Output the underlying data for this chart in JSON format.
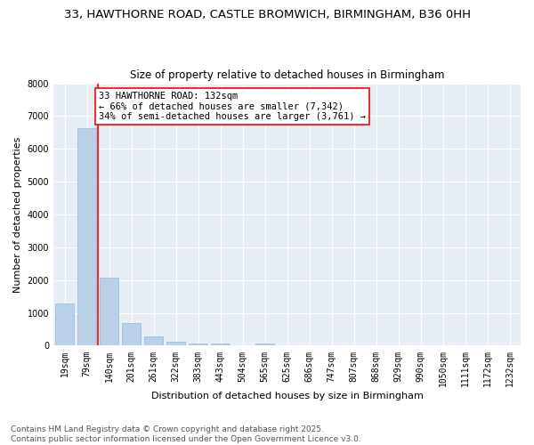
{
  "title1": "33, HAWTHORNE ROAD, CASTLE BROMWICH, BIRMINGHAM, B36 0HH",
  "title2": "Size of property relative to detached houses in Birmingham",
  "xlabel": "Distribution of detached houses by size in Birmingham",
  "ylabel": "Number of detached properties",
  "categories": [
    "19sqm",
    "79sqm",
    "140sqm",
    "201sqm",
    "261sqm",
    "322sqm",
    "383sqm",
    "443sqm",
    "504sqm",
    "565sqm",
    "625sqm",
    "686sqm",
    "747sqm",
    "807sqm",
    "868sqm",
    "929sqm",
    "990sqm",
    "1050sqm",
    "1111sqm",
    "1172sqm",
    "1232sqm"
  ],
  "values": [
    1300,
    6620,
    2080,
    680,
    295,
    130,
    80,
    55,
    0,
    55,
    0,
    0,
    0,
    0,
    0,
    0,
    0,
    0,
    0,
    0,
    0
  ],
  "bar_color": "#b8d0e8",
  "bar_edge_color": "#9ab8d0",
  "vline_color": "red",
  "vline_x_index": 1.5,
  "annotation_text": "33 HAWTHORNE ROAD: 132sqm\n← 66% of detached houses are smaller (7,342)\n34% of semi-detached houses are larger (3,761) →",
  "annotation_box_color": "white",
  "annotation_box_edgecolor": "red",
  "ylim": [
    0,
    8000
  ],
  "yticks": [
    0,
    1000,
    2000,
    3000,
    4000,
    5000,
    6000,
    7000,
    8000
  ],
  "background_color": "#e8eef5",
  "footer_text": "Contains HM Land Registry data © Crown copyright and database right 2025.\nContains public sector information licensed under the Open Government Licence v3.0.",
  "title1_fontsize": 9.5,
  "title2_fontsize": 8.5,
  "axis_label_fontsize": 8,
  "tick_fontsize": 7,
  "annotation_fontsize": 7.5,
  "footer_fontsize": 6.5
}
